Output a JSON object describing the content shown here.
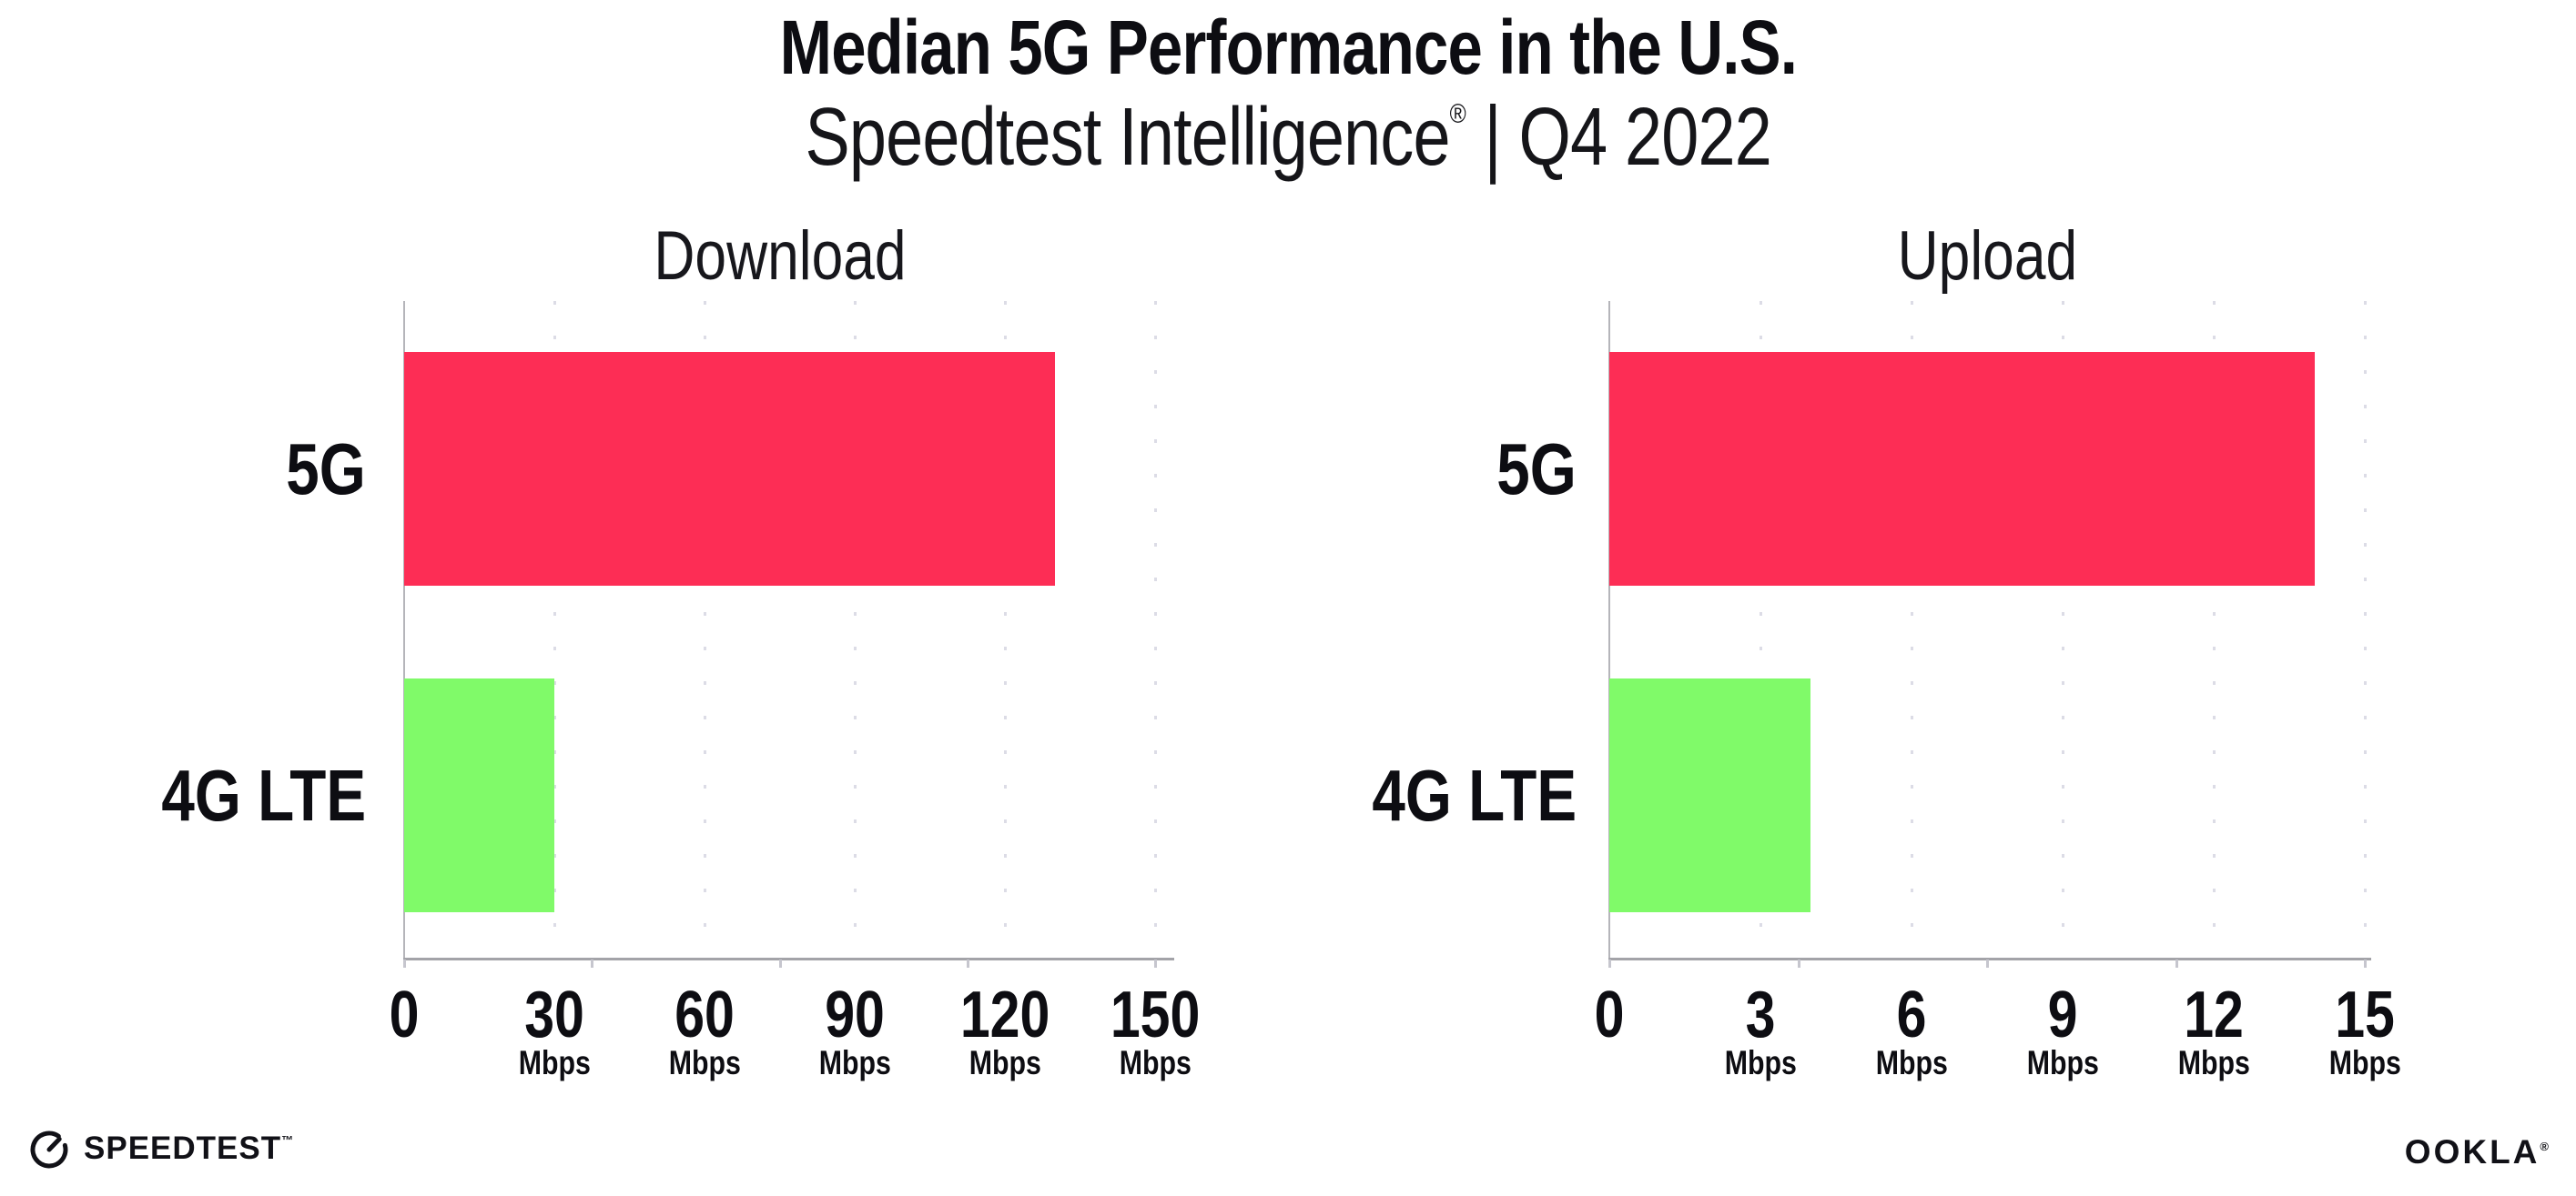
{
  "header": {
    "title": "Median 5G Performance in the U.S.",
    "subtitle": {
      "brand": "Speedtest Intelligence",
      "registered": "®",
      "separator": "|",
      "period": "Q4 2022"
    }
  },
  "footer": {
    "speedtest": {
      "label": "SPEEDTEST",
      "trademark": "™"
    },
    "ookla": {
      "label": "OOKLA",
      "registered": "®"
    }
  },
  "colors": {
    "bar_5g": "#FD2D55",
    "bar_4g_lte": "#80FA69",
    "axis": "#a3a3a8",
    "gridline_dot": "#dcdce6",
    "text": "#0d0d12",
    "logo": "#111117",
    "background": "#ffffff"
  },
  "chart_data": [
    {
      "type": "bar",
      "orientation": "horizontal",
      "title": "Download",
      "categories": [
        "5G",
        "4G LTE"
      ],
      "values": [
        130,
        30
      ],
      "unit": "Mbps",
      "xlim": [
        0,
        150
      ],
      "xticks": [
        0,
        30,
        60,
        90,
        120,
        150
      ],
      "tick_unit_label": "Mbps",
      "grid": "dotted-vertical",
      "legend": "none",
      "bar_colors": [
        "#FD2D55",
        "#80FA69"
      ]
    },
    {
      "type": "bar",
      "orientation": "horizontal",
      "title": "Upload",
      "categories": [
        "5G",
        "4G LTE"
      ],
      "values": [
        14,
        4
      ],
      "unit": "Mbps",
      "xlim": [
        0,
        15
      ],
      "xticks": [
        0,
        3,
        6,
        9,
        12,
        15
      ],
      "tick_unit_label": "Mbps",
      "grid": "dotted-vertical",
      "legend": "none",
      "bar_colors": [
        "#FD2D55",
        "#80FA69"
      ]
    }
  ]
}
